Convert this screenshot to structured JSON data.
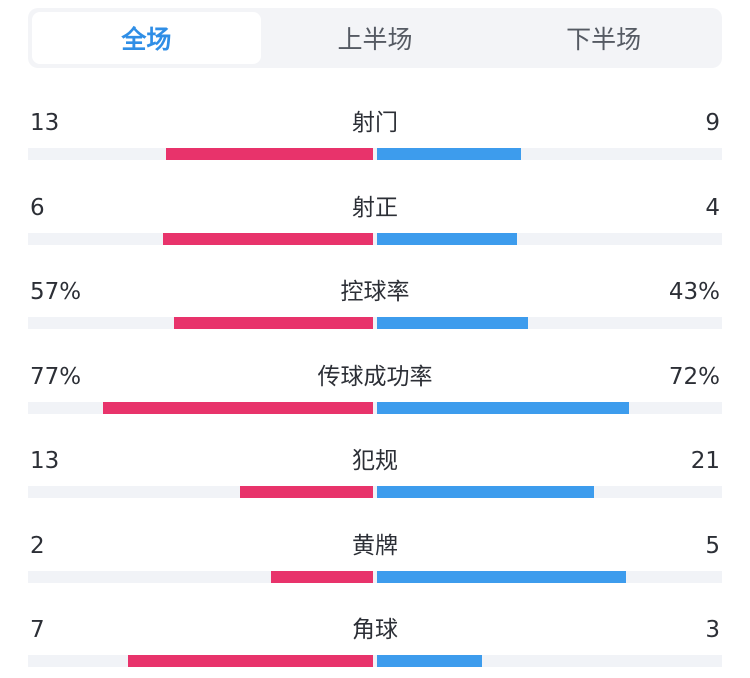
{
  "tabs": [
    {
      "label": "全场",
      "active": true
    },
    {
      "label": "上半场",
      "active": false
    },
    {
      "label": "下半场",
      "active": false
    }
  ],
  "colors": {
    "home": "#e8336b",
    "away": "#3d9ced",
    "active_tab": "#2f8ee6"
  },
  "stats": [
    {
      "label": "射门",
      "home": "13",
      "away": "9",
      "home_share": 0.59,
      "away_share": 0.41
    },
    {
      "label": "射正",
      "home": "6",
      "away": "4",
      "home_share": 0.6,
      "away_share": 0.4
    },
    {
      "label": "控球率",
      "home": "57%",
      "away": "43%",
      "home_share": 0.57,
      "away_share": 0.43
    },
    {
      "label": "传球成功率",
      "home": "77%",
      "away": "72%",
      "home_share": 0.77,
      "away_share": 0.72
    },
    {
      "label": "犯规",
      "home": "13",
      "away": "21",
      "home_share": 0.38,
      "away_share": 0.62
    },
    {
      "label": "黄牌",
      "home": "2",
      "away": "5",
      "home_share": 0.29,
      "away_share": 0.71
    },
    {
      "label": "角球",
      "home": "7",
      "away": "3",
      "home_share": 0.7,
      "away_share": 0.3
    }
  ]
}
